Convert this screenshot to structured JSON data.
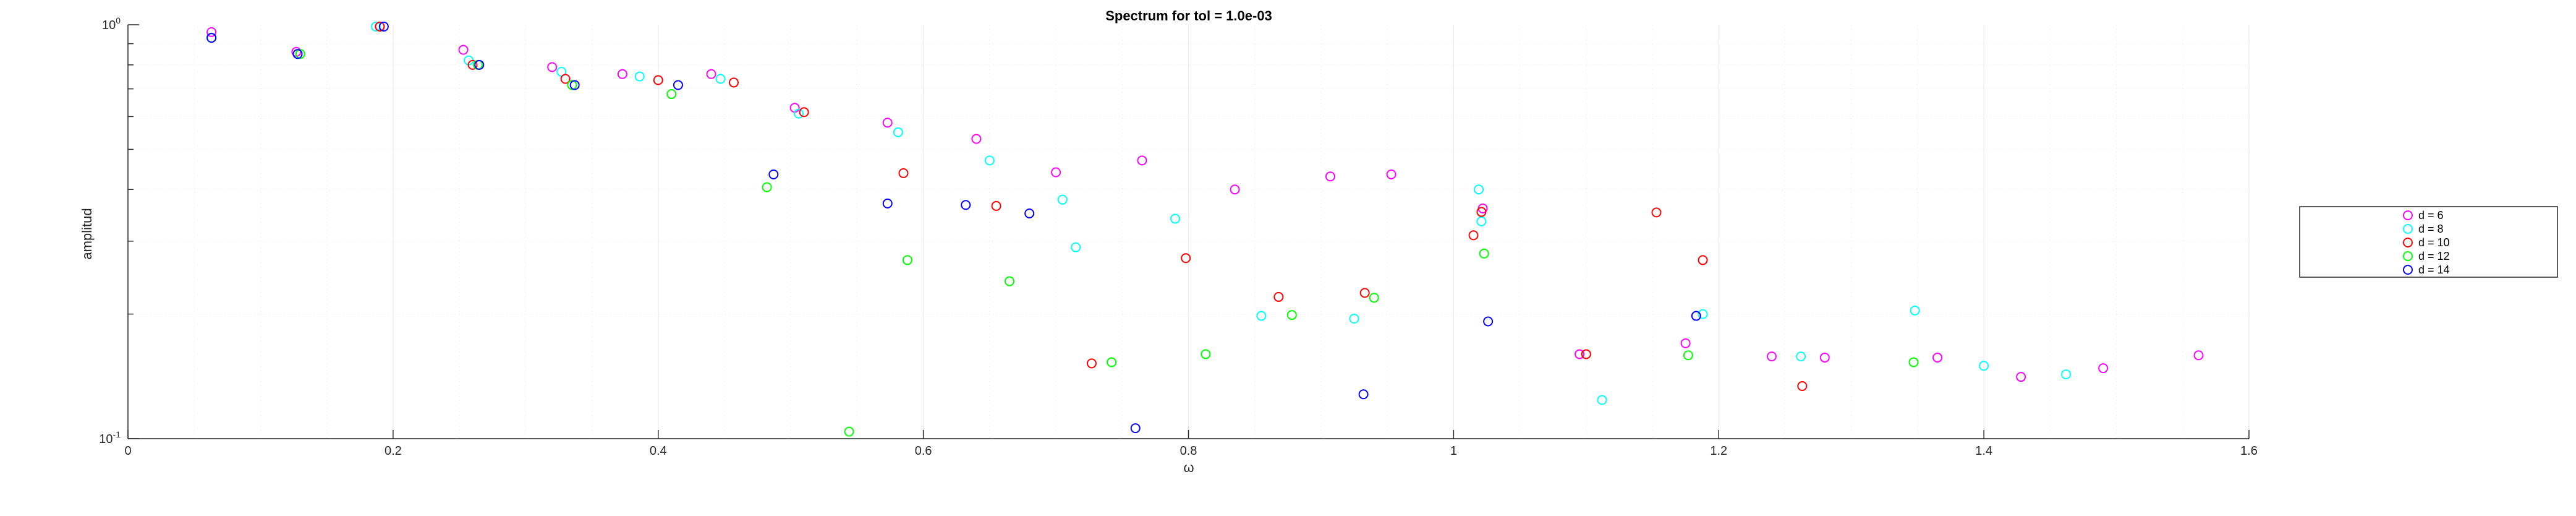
{
  "chart_data": {
    "type": "scatter",
    "title": "Spectrum for tol = 1.0e-03",
    "xlabel": "ω",
    "ylabel": "amplitud",
    "xlim": [
      0,
      1.6
    ],
    "ylim": [
      0.1,
      1
    ],
    "yscale": "log",
    "grid": true,
    "x_tick_labels": [
      "0",
      "0.2",
      "0.4",
      "0.6",
      "0.8",
      "1",
      "1.2",
      "1.4",
      "1.6"
    ],
    "y_tick_labels": [
      {
        "base": "10",
        "exp": "-1"
      },
      {
        "base": "10",
        "exp": "0"
      }
    ],
    "legend_position": "right",
    "marker": "circle-open",
    "series": [
      {
        "name": "d = 6",
        "color": "#ff00ff",
        "points": [
          [
            0.063,
            0.96
          ],
          [
            0.127,
            0.86
          ],
          [
            0.19,
            0.99
          ],
          [
            0.253,
            0.87
          ],
          [
            0.32,
            0.79
          ],
          [
            0.373,
            0.76
          ],
          [
            0.44,
            0.76
          ],
          [
            0.503,
            0.63
          ],
          [
            0.573,
            0.58
          ],
          [
            0.64,
            0.53
          ],
          [
            0.7,
            0.44
          ],
          [
            0.765,
            0.47
          ],
          [
            0.835,
            0.4
          ],
          [
            0.907,
            0.43
          ],
          [
            0.953,
            0.435
          ],
          [
            1.022,
            0.36
          ],
          [
            1.095,
            0.16
          ],
          [
            1.175,
            0.17
          ],
          [
            1.24,
            0.158
          ],
          [
            1.28,
            0.157
          ],
          [
            1.365,
            0.157
          ],
          [
            1.428,
            0.141
          ],
          [
            1.49,
            0.148
          ],
          [
            1.562,
            0.159
          ]
        ]
      },
      {
        "name": "d = 8",
        "color": "#00ffff",
        "points": [
          [
            0.063,
            0.93
          ],
          [
            0.128,
            0.85
          ],
          [
            0.187,
            0.99
          ],
          [
            0.257,
            0.82
          ],
          [
            0.327,
            0.77
          ],
          [
            0.386,
            0.75
          ],
          [
            0.447,
            0.74
          ],
          [
            0.506,
            0.61
          ],
          [
            0.581,
            0.55
          ],
          [
            0.65,
            0.47
          ],
          [
            0.705,
            0.378
          ],
          [
            0.715,
            0.29
          ],
          [
            0.79,
            0.34
          ],
          [
            0.855,
            0.198
          ],
          [
            0.925,
            0.195
          ],
          [
            1.019,
            0.4
          ],
          [
            1.021,
            0.335
          ],
          [
            1.112,
            0.124
          ],
          [
            1.188,
            0.2
          ],
          [
            1.262,
            0.158
          ],
          [
            1.348,
            0.204
          ],
          [
            1.4,
            0.15
          ],
          [
            1.462,
            0.143
          ]
        ]
      },
      {
        "name": "d = 10",
        "color": "#ff0000",
        "points": [
          [
            0.19,
            0.99
          ],
          [
            0.26,
            0.8
          ],
          [
            0.33,
            0.74
          ],
          [
            0.4,
            0.735
          ],
          [
            0.457,
            0.725
          ],
          [
            0.51,
            0.615
          ],
          [
            0.585,
            0.438
          ],
          [
            0.655,
            0.365
          ],
          [
            0.727,
            0.152
          ],
          [
            0.798,
            0.273
          ],
          [
            0.868,
            0.22
          ],
          [
            0.933,
            0.225
          ],
          [
            1.015,
            0.31
          ],
          [
            1.021,
            0.353
          ],
          [
            1.1,
            0.16
          ],
          [
            1.153,
            0.352
          ],
          [
            1.188,
            0.27
          ],
          [
            1.263,
            0.134
          ]
        ]
      },
      {
        "name": "d = 12",
        "color": "#00ff00",
        "points": [
          [
            0.063,
            0.93
          ],
          [
            0.13,
            0.85
          ],
          [
            0.264,
            0.8
          ],
          [
            0.335,
            0.715
          ],
          [
            0.41,
            0.68
          ],
          [
            0.482,
            0.405
          ],
          [
            0.544,
            0.104
          ],
          [
            0.588,
            0.27
          ],
          [
            0.665,
            0.24
          ],
          [
            0.742,
            0.153
          ],
          [
            0.813,
            0.16
          ],
          [
            0.878,
            0.199
          ],
          [
            0.94,
            0.219
          ],
          [
            1.023,
            0.28
          ],
          [
            1.177,
            0.159
          ],
          [
            1.347,
            0.153
          ]
        ]
      },
      {
        "name": "d = 14",
        "color": "#0000ff",
        "points": [
          [
            0.063,
            0.93
          ],
          [
            0.128,
            0.85
          ],
          [
            0.193,
            0.99
          ],
          [
            0.265,
            0.8
          ],
          [
            0.337,
            0.715
          ],
          [
            0.415,
            0.715
          ],
          [
            0.487,
            0.435
          ],
          [
            0.573,
            0.37
          ],
          [
            0.632,
            0.367
          ],
          [
            0.68,
            0.35
          ],
          [
            0.76,
            0.106
          ],
          [
            0.932,
            0.128
          ],
          [
            1.026,
            0.192
          ],
          [
            1.183,
            0.198
          ]
        ]
      }
    ]
  }
}
